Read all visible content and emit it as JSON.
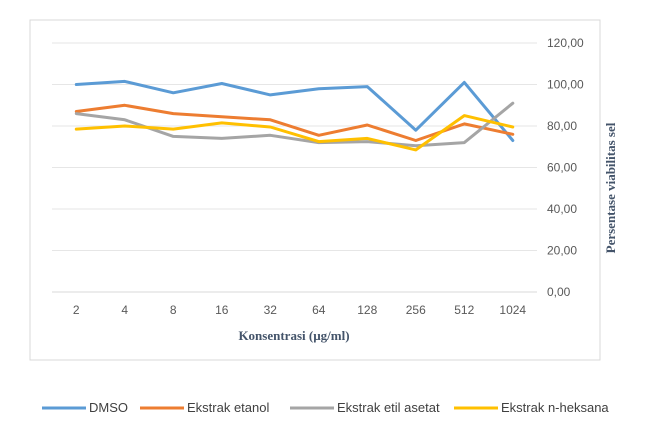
{
  "chart_data": {
    "type": "line",
    "title": "",
    "xlabel": "Konsentrasi (µg/ml)",
    "ylabel": "Persentase viabilitas sel",
    "categories": [
      "2",
      "4",
      "8",
      "16",
      "32",
      "64",
      "128",
      "256",
      "512",
      "1024"
    ],
    "ylim": [
      0,
      120
    ],
    "yticks": [
      "0,00",
      "20,00",
      "40,00",
      "60,00",
      "80,00",
      "100,00",
      "120,00"
    ],
    "y_axis_position": "right",
    "grid": true,
    "legend_position": "bottom",
    "series": [
      {
        "name": "DMSO",
        "color": "#5b9bd5",
        "values": [
          100,
          101.5,
          96,
          100.5,
          95,
          98,
          99,
          78,
          101,
          73
        ]
      },
      {
        "name": "Ekstrak etanol",
        "color": "#ed7d31",
        "values": [
          87,
          90,
          86,
          84.5,
          83,
          75.5,
          80.5,
          73,
          81,
          76
        ]
      },
      {
        "name": "Ekstrak etil asetat",
        "color": "#a5a5a5",
        "values": [
          86,
          83,
          75,
          74,
          75.5,
          72,
          72.5,
          70.5,
          72,
          91
        ]
      },
      {
        "name": "Ekstrak n-heksana",
        "color": "#ffc000",
        "values": [
          78.5,
          80,
          78.5,
          81.5,
          79.5,
          72.5,
          74,
          68.5,
          85,
          79.5
        ]
      }
    ]
  }
}
